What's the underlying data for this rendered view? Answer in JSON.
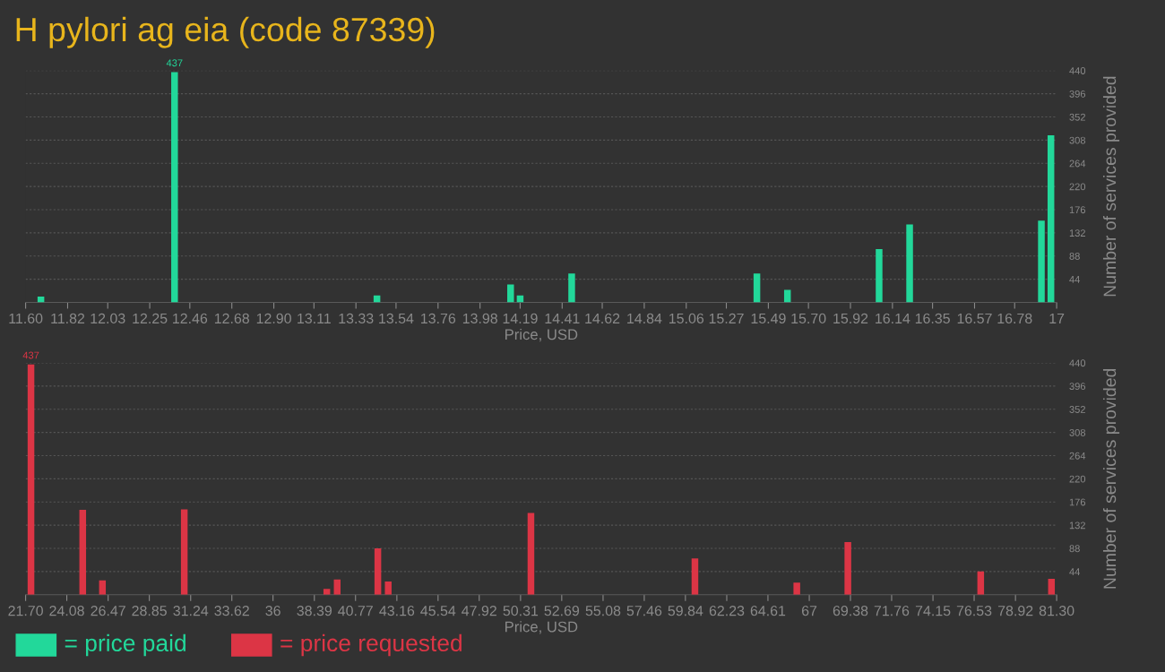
{
  "chart_data": [
    {
      "type": "bar",
      "title": "H pylori ag eia (code 87339)",
      "xlabel": "Price, USD",
      "ylabel": "Number of services provided",
      "x": [
        11.68,
        12.38,
        13.44,
        14.14,
        14.19,
        14.46,
        15.43,
        15.59,
        16.07,
        16.23,
        16.92,
        16.97
      ],
      "series": [
        {
          "name": "= price paid",
          "color": "#22d89a",
          "values": [
            11,
            437,
            13,
            34,
            13,
            55,
            55,
            24,
            101,
            148,
            155,
            317
          ],
          "value_labels": [
            null,
            "437",
            null,
            null,
            null,
            null,
            null,
            null,
            null,
            null,
            null,
            null
          ]
        }
      ],
      "xlim": [
        11.6,
        17
      ],
      "ylim": [
        0,
        440
      ],
      "xticks": [
        {
          "value": 11.6,
          "label": "11.60"
        },
        11.82,
        12.03,
        12.25,
        12.46,
        12.68,
        {
          "value": 12.9,
          "label": "12.90"
        },
        13.11,
        13.33,
        13.54,
        13.76,
        13.98,
        14.19,
        14.41,
        14.62,
        14.84,
        15.06,
        15.27,
        15.49,
        {
          "value": 15.7,
          "label": "15.70"
        },
        15.92,
        16.14,
        16.35,
        16.57,
        16.78,
        17
      ],
      "yticks": [
        44,
        88,
        132,
        176,
        220,
        264,
        308,
        352,
        396,
        440
      ],
      "grid": "y",
      "legend": "bottom left"
    },
    {
      "type": "bar",
      "xlabel": "Price, USD",
      "ylabel": "Number of services provided",
      "x": [
        22.01,
        25.0,
        26.14,
        30.87,
        39.11,
        39.71,
        42.06,
        42.66,
        50.91,
        60.39,
        66.28,
        69.23,
        76.91,
        81.0
      ],
      "series": [
        {
          "name": "= price requested",
          "color": "#dc3545",
          "values": [
            437,
            161,
            27,
            162,
            11,
            29,
            88,
            25,
            155,
            69,
            23,
            100,
            44,
            30
          ],
          "value_labels": [
            "437",
            null,
            null,
            null,
            null,
            null,
            null,
            null,
            null,
            null,
            null,
            null,
            null,
            null
          ]
        }
      ],
      "xlim": [
        21.7,
        81.3
      ],
      "ylim": [
        0,
        440
      ],
      "xticks": [
        {
          "value": 21.7,
          "label": "21.70"
        },
        24.08,
        26.47,
        28.85,
        31.24,
        33.62,
        36,
        38.39,
        40.77,
        43.16,
        45.54,
        47.92,
        50.31,
        52.69,
        55.08,
        57.46,
        59.84,
        62.23,
        64.61,
        67,
        69.38,
        71.76,
        74.15,
        76.53,
        78.92,
        {
          "value": 81.3,
          "label": "81.30"
        }
      ],
      "yticks": [
        44,
        88,
        132,
        176,
        220,
        264,
        308,
        352,
        396,
        440
      ],
      "grid": "y",
      "legend": "bottom left"
    }
  ]
}
